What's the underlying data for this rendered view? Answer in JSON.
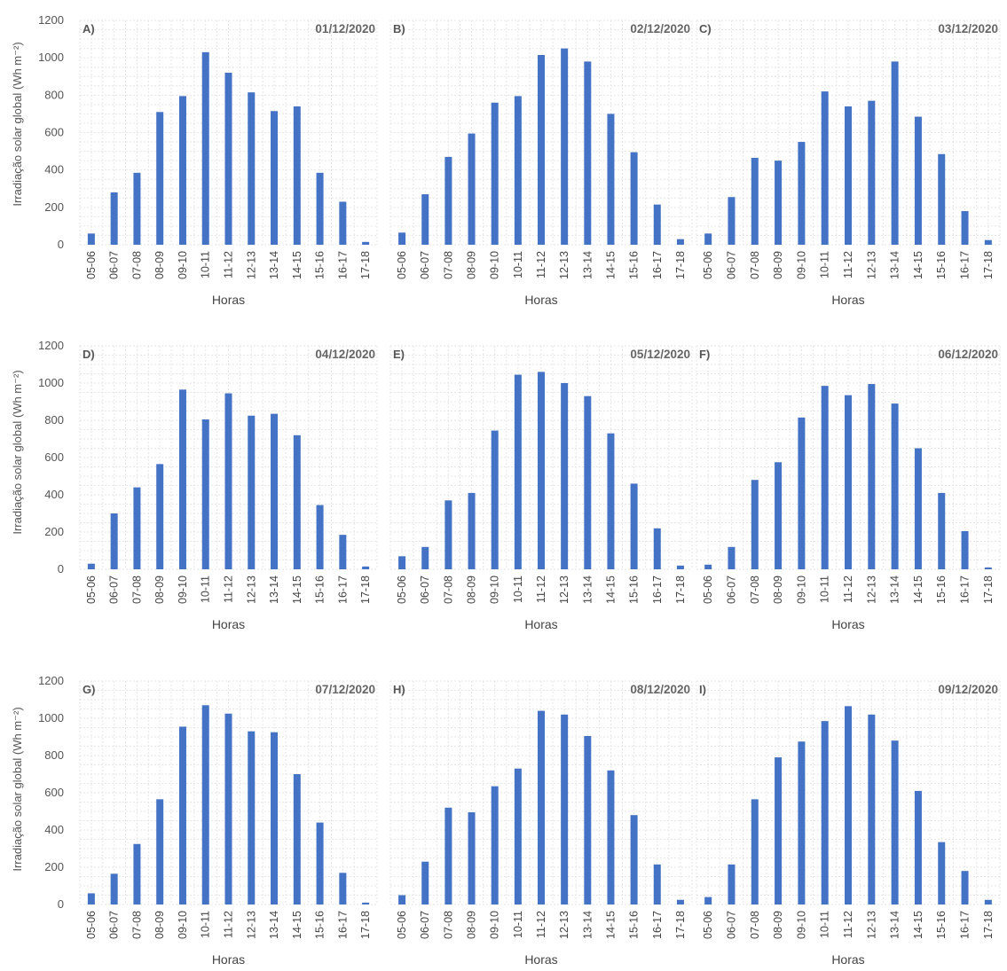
{
  "figure": {
    "ylabel": "Irradiação solar global (Wh m⁻²)"
  },
  "chart_data": [
    {
      "type": "bar",
      "panel_label": "A)",
      "title": "01/12/2020",
      "xlabel": "Horas",
      "ylim": [
        0,
        1200
      ],
      "yticks": [
        0,
        200,
        400,
        600,
        800,
        1000,
        1200
      ],
      "show_yticks": true,
      "categories": [
        "05-06",
        "06-07",
        "07-08",
        "08-09",
        "09-10",
        "10-11",
        "11-12",
        "12-13",
        "13-14",
        "14-15",
        "15-16",
        "16-17",
        "17-18"
      ],
      "values": [
        60,
        280,
        385,
        710,
        795,
        1030,
        920,
        815,
        715,
        740,
        385,
        230,
        15
      ],
      "color": "#4472c4",
      "grid": true
    },
    {
      "type": "bar",
      "panel_label": "B)",
      "title": "02/12/2020",
      "xlabel": "Horas",
      "ylim": [
        0,
        1200
      ],
      "yticks": [
        0,
        200,
        400,
        600,
        800,
        1000,
        1200
      ],
      "show_yticks": false,
      "categories": [
        "05-06",
        "06-07",
        "07-08",
        "08-09",
        "09-10",
        "10-11",
        "11-12",
        "12-13",
        "13-14",
        "14-15",
        "15-16",
        "16-17",
        "17-18"
      ],
      "values": [
        65,
        270,
        470,
        595,
        760,
        795,
        1015,
        1050,
        980,
        700,
        495,
        215,
        30
      ],
      "color": "#4472c4",
      "grid": true
    },
    {
      "type": "bar",
      "panel_label": "C)",
      "title": "03/12/2020",
      "xlabel": "Horas",
      "ylim": [
        0,
        1200
      ],
      "yticks": [
        0,
        200,
        400,
        600,
        800,
        1000,
        1200
      ],
      "show_yticks": false,
      "categories": [
        "05-06",
        "06-07",
        "07-08",
        "08-09",
        "09-10",
        "10-11",
        "11-12",
        "12-13",
        "13-14",
        "14-15",
        "15-16",
        "16-17",
        "17-18"
      ],
      "values": [
        60,
        255,
        465,
        450,
        550,
        820,
        740,
        770,
        980,
        685,
        485,
        180,
        25
      ],
      "color": "#4472c4",
      "grid": true
    },
    {
      "type": "bar",
      "panel_label": "D)",
      "title": "04/12/2020",
      "xlabel": "Horas",
      "ylim": [
        0,
        1200
      ],
      "yticks": [
        0,
        200,
        400,
        600,
        800,
        1000,
        1200
      ],
      "show_yticks": true,
      "categories": [
        "05-06",
        "06-07",
        "07-08",
        "08-09",
        "09-10",
        "10-11",
        "11-12",
        "12-13",
        "13-14",
        "14-15",
        "15-16",
        "16-17",
        "17-18"
      ],
      "values": [
        30,
        300,
        440,
        565,
        965,
        805,
        945,
        825,
        835,
        720,
        345,
        185,
        15
      ],
      "color": "#4472c4",
      "grid": true
    },
    {
      "type": "bar",
      "panel_label": "E)",
      "title": "05/12/2020",
      "xlabel": "Horas",
      "ylim": [
        0,
        1200
      ],
      "yticks": [
        0,
        200,
        400,
        600,
        800,
        1000,
        1200
      ],
      "show_yticks": false,
      "categories": [
        "05-06",
        "06-07",
        "07-08",
        "08-09",
        "09-10",
        "10-11",
        "11-12",
        "12-13",
        "13-14",
        "14-15",
        "15-16",
        "16-17",
        "17-18"
      ],
      "values": [
        70,
        120,
        370,
        410,
        745,
        1045,
        1060,
        1000,
        930,
        730,
        460,
        220,
        20
      ],
      "color": "#4472c4",
      "grid": true
    },
    {
      "type": "bar",
      "panel_label": "F)",
      "title": "06/12/2020",
      "xlabel": "Horas",
      "ylim": [
        0,
        1200
      ],
      "yticks": [
        0,
        200,
        400,
        600,
        800,
        1000,
        1200
      ],
      "show_yticks": false,
      "categories": [
        "05-06",
        "06-07",
        "07-08",
        "08-09",
        "09-10",
        "10-11",
        "11-12",
        "12-13",
        "13-14",
        "14-15",
        "15-16",
        "16-17",
        "17-18"
      ],
      "values": [
        25,
        120,
        480,
        575,
        815,
        985,
        935,
        995,
        890,
        650,
        410,
        205,
        10
      ],
      "color": "#4472c4",
      "grid": true
    },
    {
      "type": "bar",
      "panel_label": "G)",
      "title": "07/12/2020",
      "xlabel": "Horas",
      "ylim": [
        0,
        1200
      ],
      "yticks": [
        0,
        200,
        400,
        600,
        800,
        1000,
        1200
      ],
      "show_yticks": true,
      "categories": [
        "05-06",
        "06-07",
        "07-08",
        "08-09",
        "09-10",
        "10-11",
        "11-12",
        "12-13",
        "13-14",
        "14-15",
        "15-16",
        "16-17",
        "17-18"
      ],
      "values": [
        60,
        165,
        325,
        565,
        955,
        1070,
        1025,
        930,
        925,
        700,
        440,
        170,
        10
      ],
      "color": "#4472c4",
      "grid": true
    },
    {
      "type": "bar",
      "panel_label": "H)",
      "title": "08/12/2020",
      "xlabel": "Horas",
      "ylim": [
        0,
        1200
      ],
      "yticks": [
        0,
        200,
        400,
        600,
        800,
        1000,
        1200
      ],
      "show_yticks": false,
      "categories": [
        "05-06",
        "06-07",
        "07-08",
        "08-09",
        "09-10",
        "10-11",
        "11-12",
        "12-13",
        "13-14",
        "14-15",
        "15-16",
        "16-17",
        "17-18"
      ],
      "values": [
        50,
        230,
        520,
        495,
        635,
        730,
        1040,
        1020,
        905,
        720,
        480,
        215,
        25
      ],
      "color": "#4472c4",
      "grid": true
    },
    {
      "type": "bar",
      "panel_label": "I)",
      "title": "09/12/2020",
      "xlabel": "Horas",
      "ylim": [
        0,
        1200
      ],
      "yticks": [
        0,
        200,
        400,
        600,
        800,
        1000,
        1200
      ],
      "show_yticks": false,
      "categories": [
        "05-06",
        "06-07",
        "07-08",
        "08-09",
        "09-10",
        "10-11",
        "11-12",
        "12-13",
        "13-14",
        "14-15",
        "15-16",
        "16-17",
        "17-18"
      ],
      "values": [
        40,
        215,
        565,
        790,
        875,
        985,
        1065,
        1020,
        880,
        610,
        335,
        180,
        25
      ],
      "color": "#4472c4",
      "grid": true
    }
  ]
}
